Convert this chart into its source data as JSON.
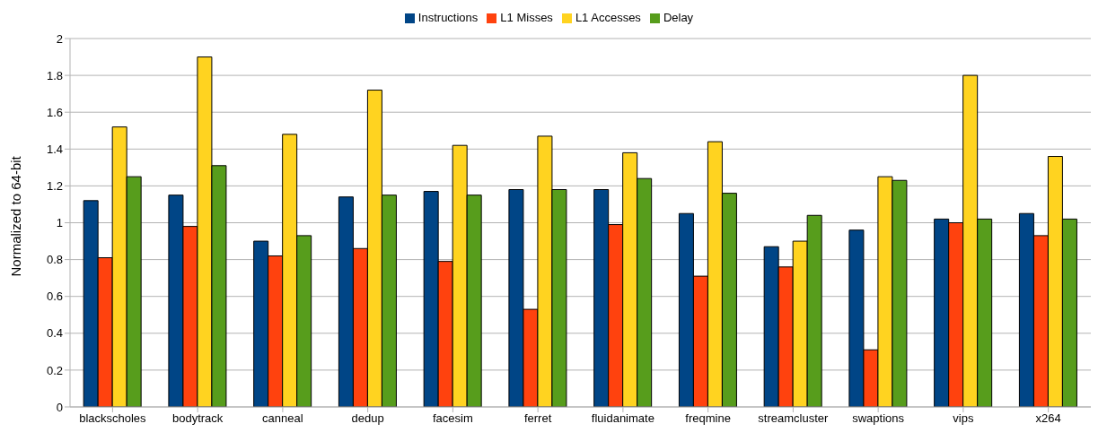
{
  "chart_data": {
    "type": "bar",
    "ylabel": "Normalized to 64-bit",
    "categories": [
      "blackscholes",
      "bodytrack",
      "canneal",
      "dedup",
      "facesim",
      "ferret",
      "fluidanimate",
      "freqmine",
      "streamcluster",
      "swaptions",
      "vips",
      "x264"
    ],
    "series": [
      {
        "name": "Instructions",
        "color": "#004586",
        "values": [
          1.12,
          1.15,
          0.9,
          1.14,
          1.17,
          1.18,
          1.18,
          1.05,
          0.87,
          0.96,
          1.02,
          1.05
        ]
      },
      {
        "name": "L1 Misses",
        "color": "#ff420e",
        "values": [
          0.81,
          0.98,
          0.82,
          0.86,
          0.79,
          0.53,
          0.99,
          0.71,
          0.76,
          0.31,
          1.0,
          0.93
        ]
      },
      {
        "name": "L1 Accesses",
        "color": "#ffd320",
        "values": [
          1.52,
          1.9,
          1.48,
          1.72,
          1.42,
          1.47,
          1.38,
          1.44,
          0.9,
          1.25,
          1.8,
          1.36
        ]
      },
      {
        "name": "Delay",
        "color": "#579d1c",
        "values": [
          1.25,
          1.31,
          0.93,
          1.15,
          1.15,
          1.18,
          1.24,
          1.16,
          1.04,
          1.23,
          1.02,
          1.02
        ]
      }
    ],
    "ylim": [
      0,
      2
    ],
    "yticks": [
      0,
      0.2,
      0.4,
      0.6,
      0.8,
      1,
      1.2,
      1.4,
      1.6,
      1.8,
      2
    ],
    "grid": "y",
    "legend": "top"
  }
}
